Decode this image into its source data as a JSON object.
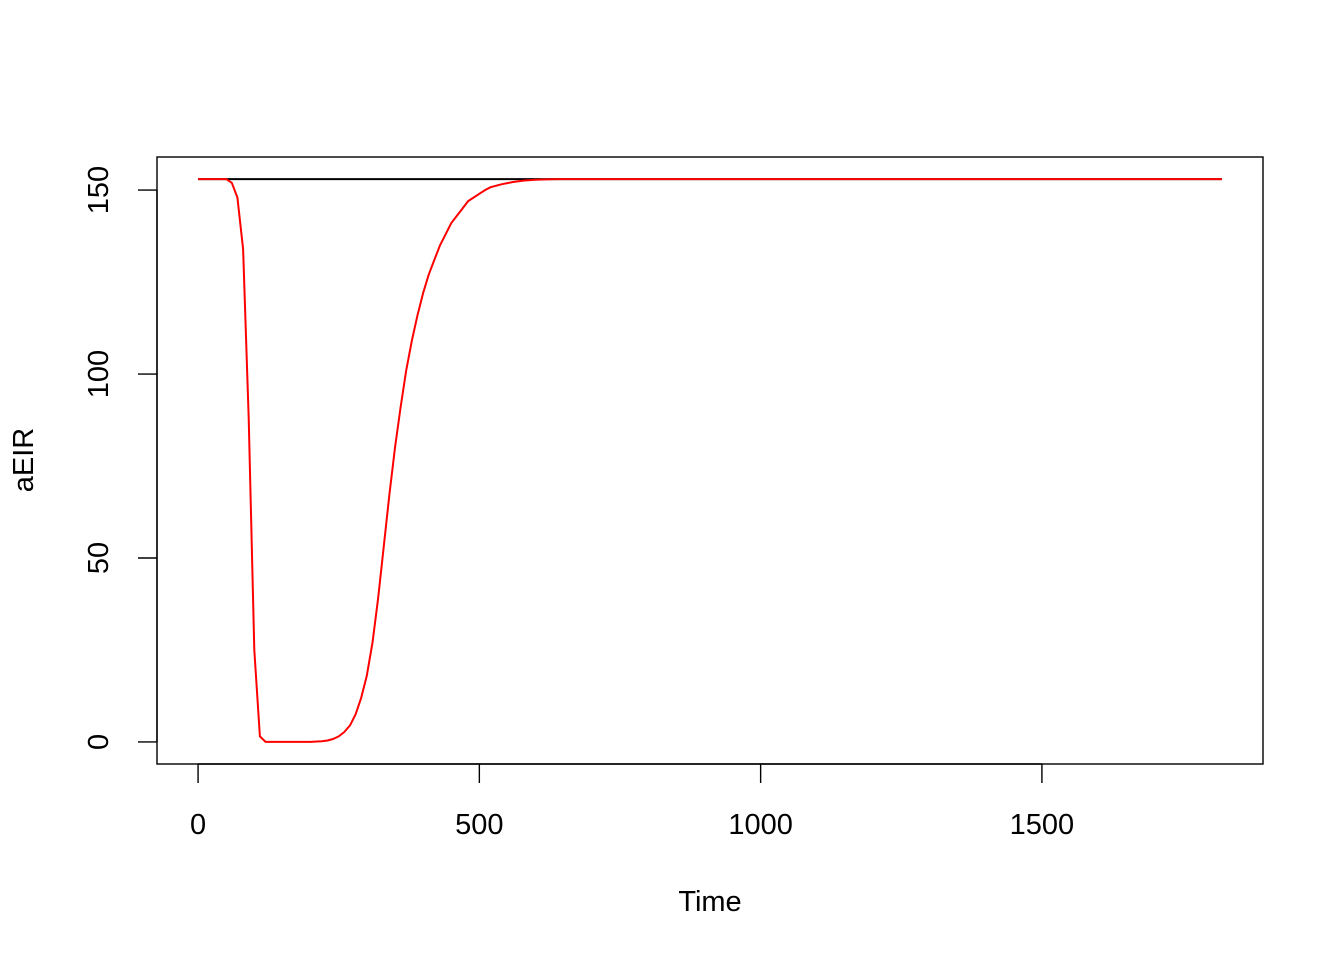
{
  "chart_data": {
    "type": "line",
    "title": "",
    "xlabel": "Time",
    "ylabel": "aEIR",
    "xlim": [
      -73,
      1893
    ],
    "ylim": [
      -6,
      159
    ],
    "xticks": [
      0,
      500,
      1000,
      1500
    ],
    "yticks": [
      0,
      50,
      100,
      150
    ],
    "x_tick_labels": [
      "0",
      "500",
      "1000",
      "1500"
    ],
    "y_tick_labels": [
      "0",
      "50",
      "100",
      "150"
    ],
    "grid": false,
    "series": [
      {
        "color": "#000000",
        "x": [
          0,
          1820
        ],
        "y": [
          153,
          153
        ]
      },
      {
        "color": "#ff0000",
        "x": [
          0,
          20,
          40,
          50,
          60,
          70,
          80,
          90,
          100,
          110,
          120,
          140,
          160,
          180,
          200,
          220,
          230,
          240,
          250,
          260,
          270,
          280,
          290,
          300,
          310,
          320,
          330,
          340,
          350,
          360,
          370,
          380,
          390,
          400,
          410,
          420,
          430,
          440,
          450,
          460,
          470,
          480,
          490,
          500,
          510,
          520,
          540,
          560,
          580,
          600,
          620,
          640,
          660,
          700,
          800,
          1000,
          1500,
          1820
        ],
        "y": [
          153,
          153,
          153,
          153,
          152,
          148,
          134,
          88,
          25,
          1.5,
          0,
          0,
          0,
          0,
          0,
          0.2,
          0.4,
          0.8,
          1.5,
          2.7,
          4.5,
          7.5,
          12,
          18,
          27,
          39,
          53,
          67,
          80,
          91,
          101,
          109,
          116,
          122,
          127,
          131,
          135,
          138,
          141,
          143,
          145,
          147,
          148,
          149,
          150,
          150.8,
          151.6,
          152.2,
          152.6,
          152.8,
          152.9,
          153,
          153,
          153,
          153,
          153,
          153,
          153
        ]
      }
    ]
  }
}
